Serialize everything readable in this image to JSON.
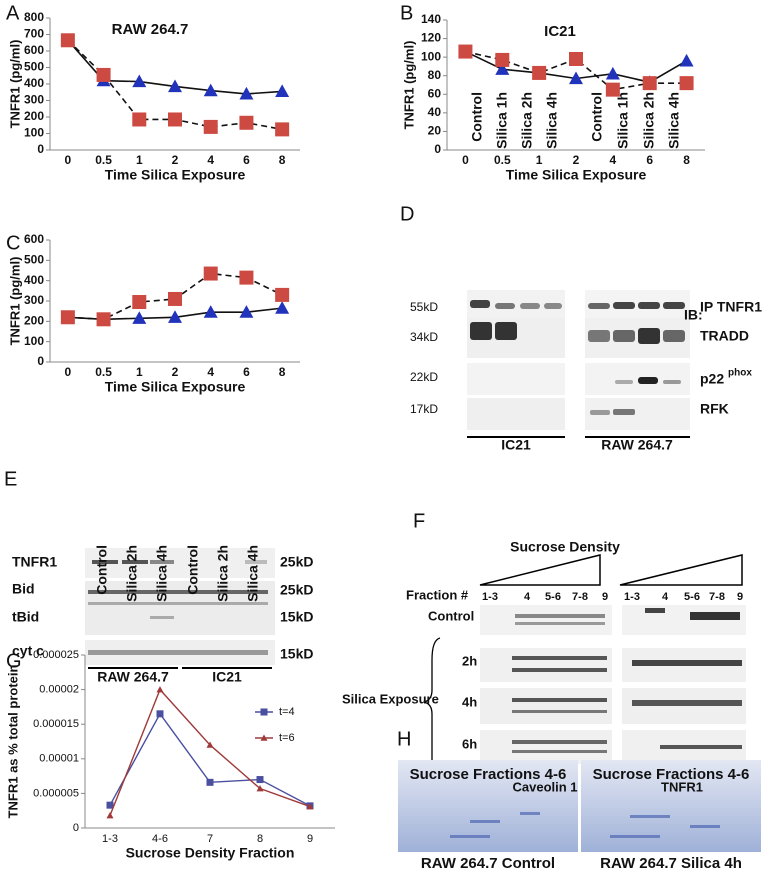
{
  "chart_data": [
    {
      "type": "line",
      "label": "A",
      "title": "RAW 264.7",
      "x_label": "Time Silica Exposure",
      "y_label": "TNFR1 (pg/ml)",
      "categories": [
        "0",
        "0.5",
        "1",
        "2",
        "4",
        "6",
        "8"
      ],
      "ylim": [
        0,
        800
      ],
      "yticks": [
        0,
        100,
        200,
        300,
        400,
        500,
        600,
        700,
        800
      ],
      "series": [
        {
          "color": "#2233bb",
          "marker": "triangle",
          "dashed": false,
          "values": [
            665,
            420,
            415,
            385,
            360,
            340,
            355
          ]
        },
        {
          "color": "#cc4a42",
          "marker": "square",
          "dashed": true,
          "values": [
            665,
            455,
            185,
            185,
            140,
            165,
            125
          ]
        }
      ]
    },
    {
      "type": "line",
      "label": "B",
      "title": "IC21",
      "x_label": "Time Silica Exposure",
      "y_label": "TNFR1 (pg/ml)",
      "categories": [
        "0",
        "0.5",
        "1",
        "2",
        "4",
        "6",
        "8"
      ],
      "ylim": [
        0,
        140
      ],
      "yticks": [
        0,
        20,
        40,
        60,
        80,
        100,
        120,
        140
      ],
      "series": [
        {
          "color": "#2233bb",
          "marker": "triangle",
          "dashed": false,
          "values": [
            106,
            87,
            83,
            77,
            82,
            73,
            96
          ]
        },
        {
          "color": "#cc4a42",
          "marker": "square",
          "dashed": true,
          "values": [
            106,
            97,
            83,
            98,
            65,
            72,
            72
          ]
        }
      ]
    },
    {
      "type": "line",
      "label": "C",
      "x_label": "Time Silica Exposure",
      "y_label": "TNFR1 (pg/ml)",
      "categories": [
        "0",
        "0.5",
        "1",
        "2",
        "4",
        "6",
        "8"
      ],
      "ylim": [
        0,
        600
      ],
      "yticks": [
        0,
        100,
        200,
        300,
        400,
        500,
        600
      ],
      "series": [
        {
          "color": "#2233bb",
          "marker": "triangle",
          "dashed": false,
          "values": [
            220,
            210,
            215,
            220,
            245,
            245,
            265
          ]
        },
        {
          "color": "#cc4a42",
          "marker": "square",
          "dashed": true,
          "values": [
            220,
            210,
            295,
            310,
            435,
            415,
            330
          ]
        }
      ]
    },
    {
      "type": "line",
      "label": "G",
      "x_label": "Sucrose Density Fraction",
      "y_label": "TNFR1 as % total protein",
      "categories": [
        "1-3",
        "4-6",
        "7",
        "8",
        "9"
      ],
      "ylim": [
        0,
        2.5e-05
      ],
      "yticks": [
        0,
        5e-06,
        1e-05,
        1.5e-05,
        2e-05,
        2.5e-05
      ],
      "legend": "right",
      "series": [
        {
          "name": "t=4",
          "color": "#4a4fa0",
          "marker": "square",
          "dashed": false,
          "values": [
            3.3e-06,
            1.65e-05,
            6.6e-06,
            7e-06,
            3.2e-06
          ]
        },
        {
          "name": "t=6",
          "color": "#a03a3a",
          "marker": "triangle",
          "dashed": false,
          "values": [
            1.8e-06,
            2e-05,
            1.2e-05,
            5.7e-06,
            3.1e-06
          ]
        }
      ]
    }
  ],
  "panel_d": {
    "label": "D",
    "lanes": [
      "Control",
      "Silica 1h",
      "Silica 2h",
      "Silica 4h",
      "Control",
      "Silica 1h",
      "Silica 2h",
      "Silica 4h"
    ],
    "sizes": [
      "55kD",
      "34kD",
      "22kD",
      "17kD"
    ],
    "targets": [
      "IP TNFR1",
      "IB:",
      "TRADD",
      "p22",
      "RFK"
    ],
    "superscript": "phox",
    "groups": [
      "IC21",
      "RAW 264.7"
    ]
  },
  "panel_e": {
    "label": "E",
    "lanes": [
      "Control",
      "Silica 2h",
      "Silica 4h",
      "Control",
      "Silica 2h",
      "Silica 4h"
    ],
    "rows": [
      "TNFR1",
      "Bid",
      "tBid",
      "cyt c"
    ],
    "sizes": [
      "25kD",
      "25kD",
      "15kD",
      "15kD"
    ],
    "groups": [
      "RAW 264.7",
      "IC21"
    ]
  },
  "panel_f": {
    "label": "F",
    "heading": "Sucrose Density",
    "fraction_label": "Fraction #",
    "fractions": [
      "1-3",
      "4",
      "5-6",
      "7-8",
      "9",
      "1-3",
      "4",
      "5-6",
      "7-8",
      "9"
    ],
    "rows": [
      "Control",
      "2h",
      "4h",
      "6h"
    ],
    "treatment": "Silica Exposure",
    "blots": [
      "Caveolin 1",
      "TNFR1"
    ]
  },
  "panel_h": {
    "label": "H",
    "titles": [
      "Sucrose Fractions 4-6",
      "Sucrose Fractions 4-6"
    ],
    "captions": [
      "RAW 264.7 Control",
      "RAW 264.7 Silica 4h"
    ]
  }
}
